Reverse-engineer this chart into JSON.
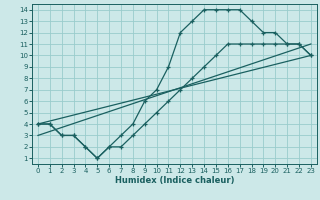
{
  "xlabel": "Humidex (Indice chaleur)",
  "ylabel": "",
  "bg_color": "#cce8e8",
  "grid_color": "#99cccc",
  "line_color": "#1a6060",
  "xlim": [
    -0.5,
    23.5
  ],
  "ylim": [
    0.5,
    14.5
  ],
  "xticks": [
    0,
    1,
    2,
    3,
    4,
    5,
    6,
    7,
    8,
    9,
    10,
    11,
    12,
    13,
    14,
    15,
    16,
    17,
    18,
    19,
    20,
    21,
    22,
    23
  ],
  "yticks": [
    1,
    2,
    3,
    4,
    5,
    6,
    7,
    8,
    9,
    10,
    11,
    12,
    13,
    14
  ],
  "series_main_x": [
    0,
    1,
    2,
    3,
    4,
    5,
    6,
    7,
    8,
    9,
    10,
    11,
    12,
    13,
    14,
    15,
    16,
    17,
    18,
    19,
    20,
    21,
    22,
    23
  ],
  "series_main_y": [
    4,
    4,
    3,
    3,
    2,
    1,
    2,
    3,
    4,
    6,
    7,
    9,
    12,
    13,
    14,
    14,
    14,
    14,
    13,
    12,
    12,
    11,
    11,
    10
  ],
  "series_low_x": [
    0,
    1,
    2,
    3,
    4,
    5,
    6,
    7,
    8,
    9,
    10,
    11,
    12,
    13,
    14,
    15,
    16,
    17,
    18,
    19,
    20,
    21,
    22,
    23
  ],
  "series_low_y": [
    4,
    4,
    3,
    3,
    2,
    1,
    2,
    2,
    3,
    4,
    5,
    6,
    7,
    8,
    9,
    10,
    11,
    11,
    11,
    11,
    11,
    11,
    11,
    10
  ],
  "series_line1_x": [
    0,
    23
  ],
  "series_line1_y": [
    4,
    10
  ],
  "series_line2_x": [
    0,
    23
  ],
  "series_line2_y": [
    3,
    11
  ]
}
